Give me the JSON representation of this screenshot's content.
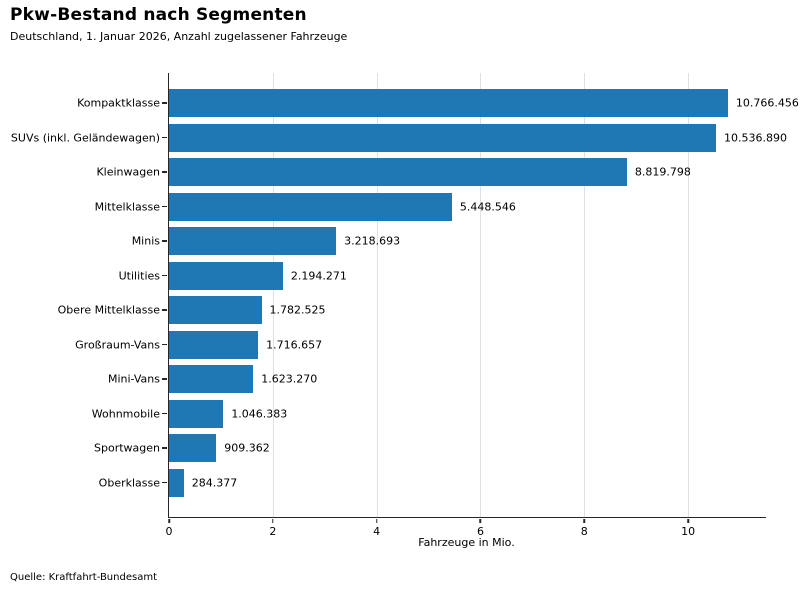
{
  "chart_data": {
    "type": "bar",
    "orientation": "horizontal",
    "title": "Pkw-Bestand nach Segmenten",
    "subtitle": "Deutschland, 1. Januar 2026, Anzahl zugelassener Fahrzeuge",
    "xlabel": "Fahrzeuge in Mio.",
    "source": "Quelle: Kraftfahrt-Bundesamt",
    "categories": [
      "Kompaktklasse",
      "SUVs (inkl. Geländewagen)",
      "Kleinwagen",
      "Mittelklasse",
      "Minis",
      "Utilities",
      "Obere Mittelklasse",
      "Großraum-Vans",
      "Mini-Vans",
      "Wohnmobile",
      "Sportwagen",
      "Oberklasse"
    ],
    "values": [
      10766456,
      10536890,
      8819798,
      5448546,
      3218693,
      2194271,
      1782525,
      1716657,
      1623270,
      1046383,
      909362,
      284377
    ],
    "value_labels": [
      "10.766.456",
      "10.536.890",
      "8.819.798",
      "5.448.546",
      "3.218.693",
      "2.194.271",
      "1.782.525",
      "1.716.657",
      "1.623.270",
      "1.046.383",
      "909.362",
      "284.377"
    ],
    "xlim": [
      0,
      11.5
    ],
    "xticks": [
      0,
      2,
      4,
      6,
      8,
      10
    ],
    "xtick_labels": [
      "0",
      "2",
      "4",
      "6",
      "8",
      "10"
    ],
    "grid": true,
    "legend": false,
    "colors": {
      "bar": "#1f77b4",
      "grid": "#e0e0e0",
      "axis": "#262626",
      "text": "#000000",
      "background": "#ffffff"
    }
  }
}
